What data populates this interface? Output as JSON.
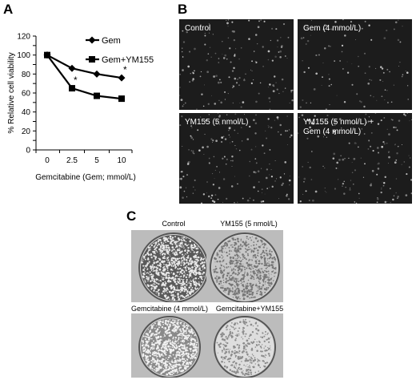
{
  "panels": {
    "a": {
      "letter": "A"
    },
    "b": {
      "letter": "B"
    },
    "c": {
      "letter": "C"
    }
  },
  "chart_data": {
    "type": "line",
    "categories": [
      "0",
      "2.5",
      "5",
      "10"
    ],
    "series": [
      {
        "name": "Gem",
        "values": [
          100,
          86,
          80,
          76
        ],
        "marker": "diamond"
      },
      {
        "name": "Gem+YM155",
        "values": [
          100,
          65,
          57,
          54
        ],
        "marker": "square"
      }
    ],
    "ylabel": "% Relative cell viability",
    "xlabel": "Gemcitabine (Gem; mmol/L)",
    "ylim": [
      0,
      120
    ],
    "yticks": [
      0,
      10,
      20,
      30,
      40,
      50,
      60,
      70,
      80,
      90,
      100,
      110,
      120
    ],
    "annotations": [
      {
        "text": "*",
        "series": "Gem",
        "category": "10"
      },
      {
        "text": "*",
        "series": "Gem+YM155",
        "category": "2.5"
      }
    ],
    "legend": "top-right",
    "grid": false,
    "line_color": "#000000"
  },
  "micrographs": [
    {
      "label": "Control"
    },
    {
      "label": "Gem (4 mmol/L)"
    },
    {
      "label": "YM155 (5 nmol/L)"
    },
    {
      "label": "YM155 (5 nmol/L) +\nGem (4 mmol/L)"
    }
  ],
  "plates": [
    {
      "label": "Control"
    },
    {
      "label": "YM155 (5 nmol/L)"
    },
    {
      "label": "Gemcitabine (4 mmol/L)"
    },
    {
      "label": "Gemcitabine+YM155"
    }
  ]
}
